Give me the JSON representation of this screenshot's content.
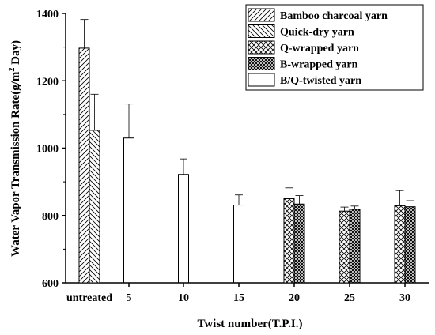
{
  "chart_data": {
    "type": "bar",
    "xlabel": "Twist number(T.P.I.)",
    "ylabel": "Water Vapor Transmission Rate(g/m² Day)",
    "categories": [
      "untreated",
      "5",
      "10",
      "15",
      "20",
      "25",
      "30"
    ],
    "ylim": [
      600,
      1400
    ],
    "yticks": [
      600,
      800,
      1000,
      1200,
      1400
    ],
    "grid": false,
    "legend_position": "top-right",
    "series": [
      {
        "name": "Bamboo charcoal yarn",
        "pattern": "diag-left",
        "values": [
          1297,
          null,
          null,
          null,
          null,
          null,
          null
        ],
        "errors": [
          85,
          null,
          null,
          null,
          null,
          null,
          null
        ]
      },
      {
        "name": "Quick-dry yarn",
        "pattern": "diag-right",
        "values": [
          1053,
          null,
          null,
          null,
          null,
          null,
          null
        ],
        "errors": [
          107,
          null,
          null,
          null,
          null,
          null,
          null
        ]
      },
      {
        "name": "Q-wrapped yarn",
        "pattern": "crosshatch",
        "values": [
          null,
          null,
          null,
          null,
          850,
          813,
          829
        ],
        "errors": [
          null,
          null,
          null,
          null,
          32,
          12,
          45
        ]
      },
      {
        "name": "B-wrapped yarn",
        "pattern": "dense-crosshatch",
        "values": [
          null,
          null,
          null,
          null,
          834,
          818,
          826
        ],
        "errors": [
          null,
          null,
          null,
          null,
          25,
          10,
          18
        ]
      },
      {
        "name": "B/Q-twisted yarn",
        "pattern": "plain",
        "values": [
          null,
          1030,
          922,
          831,
          null,
          null,
          null
        ],
        "errors": [
          null,
          101,
          46,
          30,
          null,
          null,
          null
        ]
      }
    ]
  }
}
